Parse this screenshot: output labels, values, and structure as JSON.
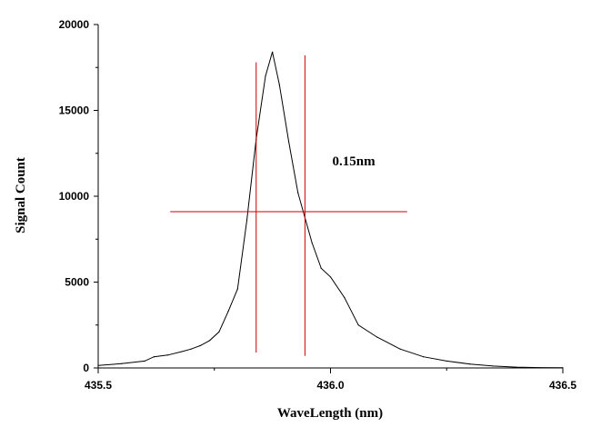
{
  "chart_data": {
    "type": "line",
    "title": "",
    "xlabel": "WaveLength (nm)",
    "ylabel": "Signal Count",
    "xlim": [
      435.5,
      436.5
    ],
    "ylim": [
      0,
      20000
    ],
    "x_ticks": [
      435.5,
      436.0,
      436.5
    ],
    "x_tick_labels": [
      "435.5",
      "436.0",
      "436.5"
    ],
    "y_ticks": [
      0,
      5000,
      10000,
      15000,
      20000
    ],
    "y_tick_labels": [
      "0",
      "5000",
      "10000",
      "15000",
      "20000"
    ],
    "grid": false,
    "series": [
      {
        "color": "#000000",
        "x": [
          435.5,
          435.55,
          435.6,
          435.62,
          435.65,
          435.68,
          435.7,
          435.72,
          435.74,
          435.76,
          435.78,
          435.8,
          435.82,
          435.84,
          435.86,
          435.875,
          435.89,
          435.91,
          435.93,
          435.96,
          435.98,
          436.0,
          436.03,
          436.06,
          436.1,
          436.15,
          436.2,
          436.25,
          436.3,
          436.35,
          436.4,
          436.45,
          436.5
        ],
        "y": [
          150,
          250,
          400,
          650,
          750,
          950,
          1100,
          1300,
          1600,
          2100,
          3300,
          4600,
          8600,
          13300,
          17000,
          18400,
          16500,
          13200,
          10200,
          7300,
          5800,
          5300,
          4100,
          2500,
          1800,
          1100,
          650,
          400,
          230,
          110,
          50,
          20,
          10
        ]
      }
    ],
    "markers": {
      "color": "#cc0000",
      "vertical_lines": [
        {
          "x": 435.84,
          "y_range": [
            900,
            17800
          ]
        },
        {
          "x": 435.945,
          "y_range": [
            700,
            18200
          ]
        }
      ],
      "horizontal_line": {
        "y": 9100,
        "x_range": [
          435.655,
          436.165
        ]
      }
    },
    "annotations": [
      {
        "text": "0.15nm",
        "x": 436.05,
        "y": 11800
      }
    ]
  }
}
